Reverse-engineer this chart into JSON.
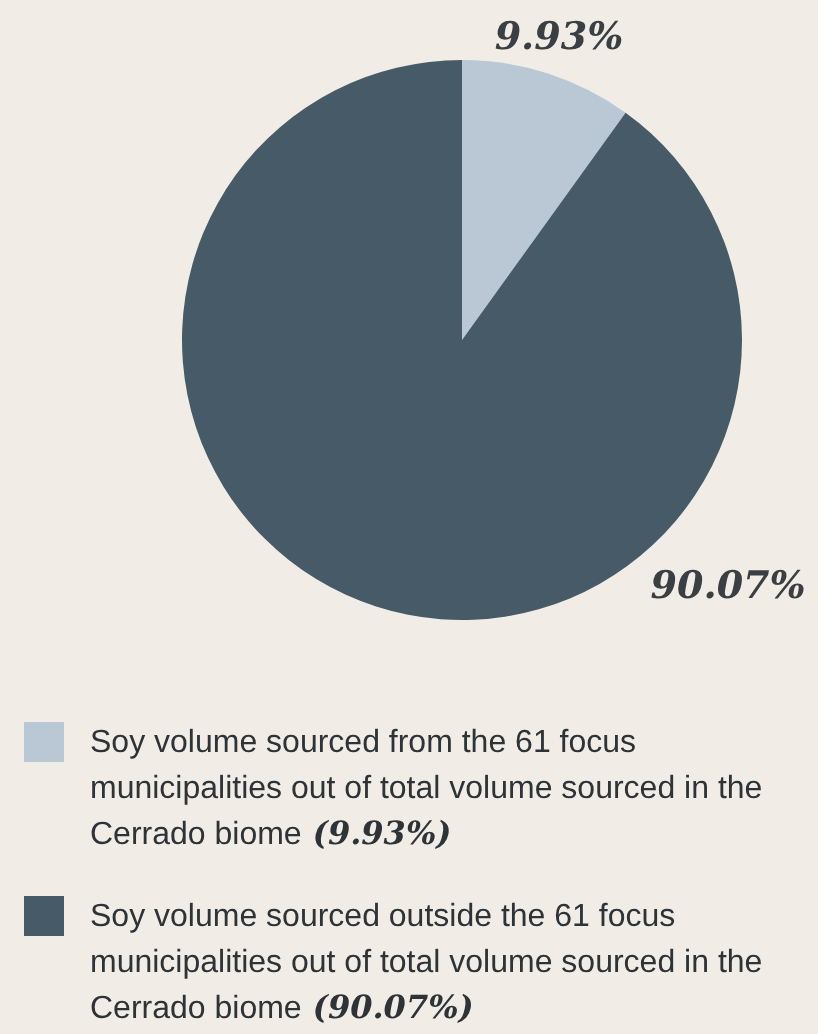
{
  "chart_data": {
    "type": "pie",
    "categories": [
      "Soy volume sourced from the 61 focus municipalities out of total volume sourced in the Cerrado biome (9.93%)",
      "Soy volume sourced outside the 61 focus municipalities out of total volume sourced in the Cerrado biome (90.07%)"
    ],
    "values": [
      9.93,
      90.07
    ],
    "colors": [
      "#b9c8d4",
      "#465b67"
    ],
    "value_labels": [
      "9.93%",
      "90.07%"
    ],
    "legend": "bottom"
  }
}
